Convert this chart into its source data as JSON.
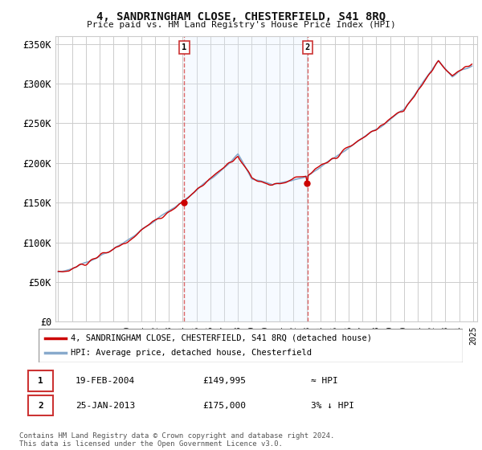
{
  "title": "4, SANDRINGHAM CLOSE, CHESTERFIELD, S41 8RQ",
  "subtitle": "Price paid vs. HM Land Registry's House Price Index (HPI)",
  "ylim": [
    0,
    360000
  ],
  "yticks": [
    0,
    50000,
    100000,
    150000,
    200000,
    250000,
    300000,
    350000
  ],
  "ytick_labels": [
    "£0",
    "£50K",
    "£100K",
    "£150K",
    "£200K",
    "£250K",
    "£300K",
    "£350K"
  ],
  "background_color": "#ffffff",
  "grid_color": "#cccccc",
  "t1_year": 2004.12,
  "t2_year": 2013.04,
  "t1_price": 149995,
  "t2_price": 175000,
  "legend_line1": "4, SANDRINGHAM CLOSE, CHESTERFIELD, S41 8RQ (detached house)",
  "legend_line2": "HPI: Average price, detached house, Chesterfield",
  "table_row1": [
    "1",
    "19-FEB-2004",
    "£149,995",
    "≈ HPI"
  ],
  "table_row2": [
    "2",
    "25-JAN-2013",
    "£175,000",
    "3% ↓ HPI"
  ],
  "footer": "Contains HM Land Registry data © Crown copyright and database right 2024.\nThis data is licensed under the Open Government Licence v3.0.",
  "line_color_red": "#cc0000",
  "line_color_blue": "#88aacc",
  "vline_color": "#dd6666",
  "shade_color": "#ddeeff"
}
